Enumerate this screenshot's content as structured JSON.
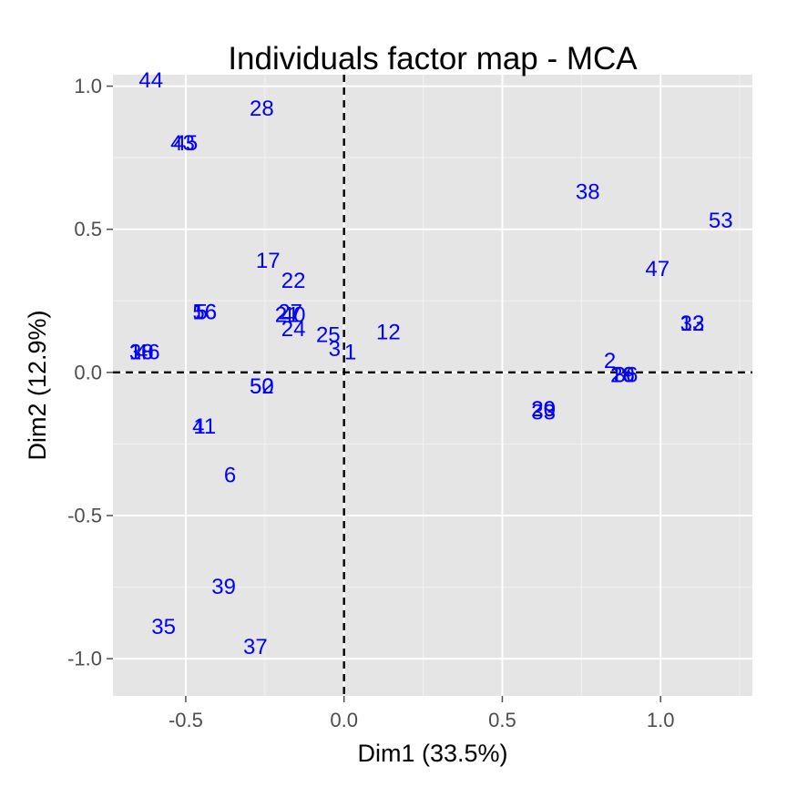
{
  "chart_data": {
    "type": "scatter",
    "title": "Individuals factor map - MCA",
    "xlabel": "Dim1 (33.5%)",
    "ylabel": "Dim2 (12.9%)",
    "xlim": [
      -0.73,
      1.29
    ],
    "ylim": [
      -1.13,
      1.04
    ],
    "x_ticks": [
      -0.5,
      0.0,
      0.5,
      1.0
    ],
    "y_ticks": [
      -1.0,
      -0.5,
      0.0,
      0.5,
      1.0
    ],
    "x_tick_labels": [
      "-0.5",
      "0.0",
      "0.5",
      "1.0"
    ],
    "y_tick_labels": [
      "-1.0",
      "-0.5",
      "0.0",
      "0.5",
      "1.0"
    ],
    "reference_lines": {
      "x": 0.0,
      "y": 0.0,
      "style": "dashed"
    },
    "grid": true,
    "point_color": "#0000ff",
    "background_color": "#e5e5e5",
    "grid_color": "#ffffff",
    "points": [
      {
        "label": "44",
        "x": -0.61,
        "y": 1.02
      },
      {
        "label": "28",
        "x": -0.26,
        "y": 0.92
      },
      {
        "label": "43",
        "x": -0.51,
        "y": 0.8
      },
      {
        "label": "45",
        "x": -0.5,
        "y": 0.8
      },
      {
        "label": "38",
        "x": 0.77,
        "y": 0.63
      },
      {
        "label": "53",
        "x": 1.19,
        "y": 0.53
      },
      {
        "label": "47",
        "x": 0.99,
        "y": 0.36
      },
      {
        "label": "17",
        "x": -0.24,
        "y": 0.39
      },
      {
        "label": "22",
        "x": -0.16,
        "y": 0.32
      },
      {
        "label": "5",
        "x": -0.45,
        "y": 0.21
      },
      {
        "label": "16",
        "x": -0.44,
        "y": 0.21
      },
      {
        "label": "56",
        "x": -0.44,
        "y": 0.21
      },
      {
        "label": "27",
        "x": -0.17,
        "y": 0.21
      },
      {
        "label": "21",
        "x": -0.18,
        "y": 0.2
      },
      {
        "label": "40",
        "x": -0.16,
        "y": 0.2
      },
      {
        "label": "24",
        "x": -0.16,
        "y": 0.15
      },
      {
        "label": "25",
        "x": -0.05,
        "y": 0.13
      },
      {
        "label": "12",
        "x": 0.14,
        "y": 0.14
      },
      {
        "label": "13",
        "x": 1.1,
        "y": 0.17
      },
      {
        "label": "32",
        "x": 1.1,
        "y": 0.17
      },
      {
        "label": "3",
        "x": -0.03,
        "y": 0.08
      },
      {
        "label": "1",
        "x": 0.02,
        "y": 0.07
      },
      {
        "label": "18",
        "x": -0.64,
        "y": 0.07
      },
      {
        "label": "30",
        "x": -0.64,
        "y": 0.07
      },
      {
        "label": "46",
        "x": -0.62,
        "y": 0.07
      },
      {
        "label": "2",
        "x": 0.84,
        "y": 0.04
      },
      {
        "label": "19",
        "x": 0.88,
        "y": -0.01
      },
      {
        "label": "26",
        "x": 0.88,
        "y": -0.01
      },
      {
        "label": "36",
        "x": 0.89,
        "y": -0.01
      },
      {
        "label": "50",
        "x": -0.26,
        "y": -0.05
      },
      {
        "label": "52",
        "x": -0.26,
        "y": -0.05
      },
      {
        "label": "20",
        "x": 0.63,
        "y": -0.13
      },
      {
        "label": "29",
        "x": 0.63,
        "y": -0.13
      },
      {
        "label": "33",
        "x": 0.63,
        "y": -0.14
      },
      {
        "label": "4",
        "x": -0.46,
        "y": -0.19
      },
      {
        "label": "11",
        "x": -0.44,
        "y": -0.19
      },
      {
        "label": "6",
        "x": -0.36,
        "y": -0.36
      },
      {
        "label": "39",
        "x": -0.38,
        "y": -0.75
      },
      {
        "label": "35",
        "x": -0.57,
        "y": -0.89
      },
      {
        "label": "37",
        "x": -0.28,
        "y": -0.96
      }
    ]
  }
}
